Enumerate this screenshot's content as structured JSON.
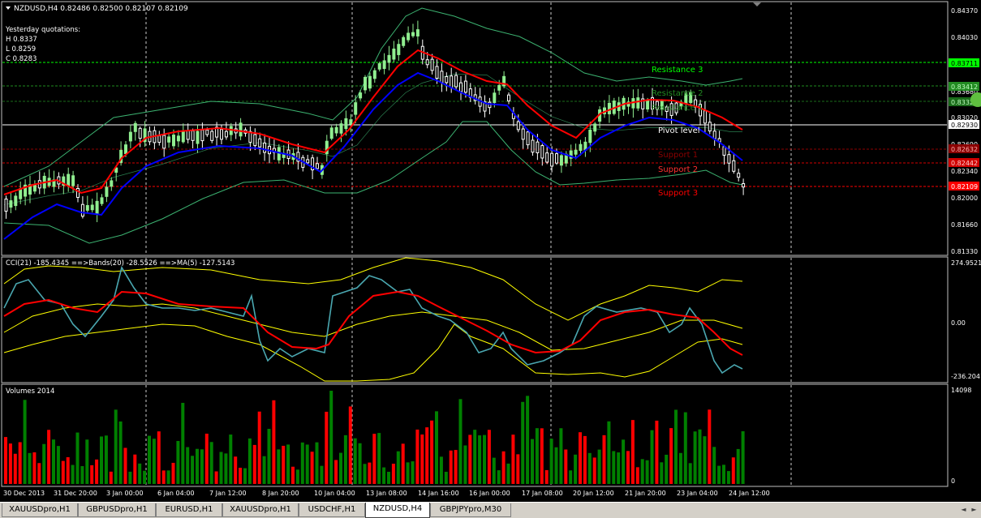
{
  "colors": {
    "bull": "#90ee90",
    "bear": "#ffffff",
    "ema_fast": "#0000ff",
    "ema_slow": "#ff0000",
    "bands": "#3cb371",
    "grid": "#ffffff",
    "vol_up": "#008000",
    "vol_down": "#ff0000",
    "cci": "#4aa7b0",
    "cci_ma": "#ff0000",
    "cci_bands": "#ffff00",
    "resistance": "#00ff00",
    "pivot": "#ffffff",
    "support": "#ff0000"
  },
  "header": {
    "title": "NZDUSD,H4  0.82486 0.82500 0.82107 0.82109"
  },
  "quotes": {
    "title": "Yesterday quotations:",
    "h": "H 0.8337",
    "l": "L 0.8259",
    "c": "C 0.8283"
  },
  "pivots": {
    "r3": {
      "label": "Resistance 3",
      "value": "0.83711"
    },
    "r2": {
      "label": "Resistance 2",
      "value": "0.83412"
    },
    "r1": {
      "label": "Resistance 1",
      "value": "0.83329"
    },
    "pp": {
      "label": "Pivot level",
      "value": "0.82930"
    },
    "s1": {
      "label": "Support 1",
      "value": "0.82632"
    },
    "s2": {
      "label": "Support 2",
      "value": "0.82442"
    },
    "s3": {
      "label": "Support 3",
      "value": "0.82109"
    }
  },
  "price_axis": [
    "0.84370",
    "0.84030",
    "0.83680",
    "0.83020",
    "0.82690",
    "0.82340",
    "0.82000",
    "0.81660",
    "0.81330"
  ],
  "cci": {
    "label": "CCI(21) -185.4345   ==>Bands(20) -28.5526   ==>MA(5) -127.5143",
    "axis": [
      "274.9521",
      "0.00",
      "-236.2041"
    ]
  },
  "volume": {
    "label": "Volumes 2014",
    "axis": [
      "14098",
      "0"
    ]
  },
  "time_axis": [
    "30 Dec 2013",
    "31 Dec 20:00",
    "3 Jan 00:00",
    "6 Jan 04:00",
    "7 Jan 12:00",
    "8 Jan 20:00",
    "10 Jan 04:00",
    "13 Jan 08:00",
    "14 Jan 16:00",
    "16 Jan 00:00",
    "17 Jan 08:00",
    "20 Jan 12:00",
    "21 Jan 20:00",
    "23 Jan 04:00",
    "24 Jan 12:00"
  ],
  "tabs": [
    "XAUUSDpro,H1",
    "GBPUSDpro,H1",
    "EURUSD,H1",
    "XAUUSDpro,H1",
    "USDCHF,H1",
    "NZDUSD,H4",
    "GBPJPYpro,M30"
  ],
  "nav": {
    "left": "◄",
    "right": "►"
  }
}
